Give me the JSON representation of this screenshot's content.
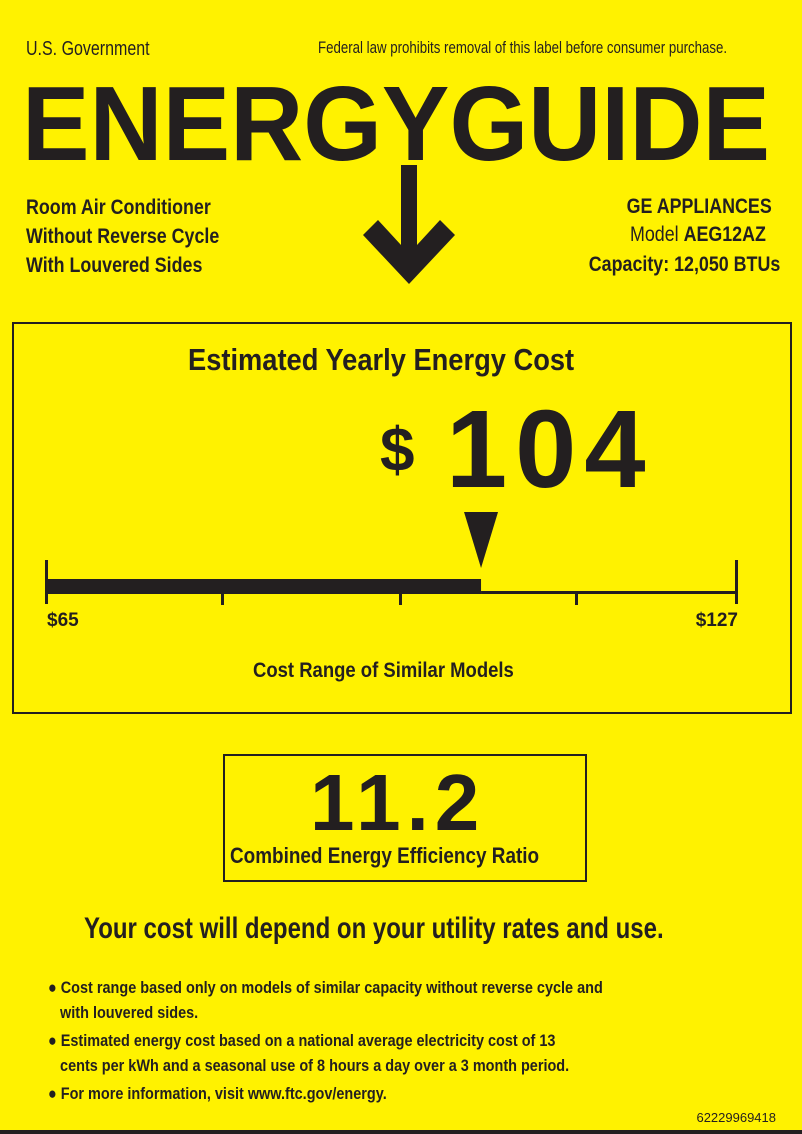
{
  "header": {
    "gov_label": "U.S. Government",
    "legal_notice": "Federal law prohibits removal of this label before consumer purchase.",
    "title": "ENERGYGUIDE"
  },
  "product": {
    "type_lines": [
      "Room Air Conditioner",
      "Without Reverse Cycle",
      "With Louvered Sides"
    ],
    "manufacturer": "GE APPLIANCES",
    "model_label": "Model",
    "model": "AEG12AZ",
    "capacity": "Capacity: 12,050 BTUs"
  },
  "cost": {
    "heading": "Estimated Yearly Energy Cost",
    "currency": "$",
    "value": "104",
    "range_min_label": "$65",
    "range_max_label": "$127",
    "range_min": 65,
    "range_max": 127,
    "marker_value": 104,
    "range_caption": "Cost Range of Similar Models"
  },
  "efficiency": {
    "value": "11.2",
    "label": "Combined Energy Efficiency Ratio"
  },
  "disclaimer": {
    "headline": "Your cost will depend on your utility rates and use.",
    "bullets": [
      [
        "Cost range based only on models of similar capacity without reverse cycle and",
        "with louvered sides."
      ],
      [
        "Estimated energy cost based on a national average electricity cost of 13",
        "cents per kWh and a seasonal use of 8 hours a day over a 3 month period."
      ],
      [
        "For more information, visit www.ftc.gov/energy."
      ]
    ]
  },
  "label_id": "62229969418",
  "colors": {
    "background": "#fff200",
    "ink": "#231f20"
  }
}
